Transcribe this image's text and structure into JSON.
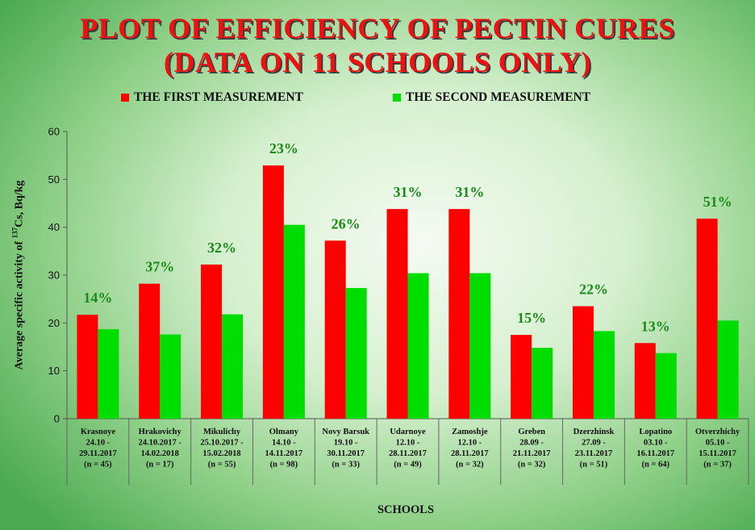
{
  "chart_data": {
    "type": "bar",
    "title_line1": "PLOT OF EFFICIENCY OF PECTIN CURES",
    "title_line2": "(DATA ON 11 SCHOOLS ONLY)",
    "xlabel": "SCHOOLS",
    "ylabel_prefix": "Average specific activity of ",
    "ylabel_sup": "137",
    "ylabel_suffix": "Cs, Bq/kg",
    "ylim": [
      0,
      60
    ],
    "yticks": [
      0,
      10,
      20,
      30,
      40,
      50,
      60
    ],
    "legend_position": "top",
    "colors": {
      "first": "#ff0000",
      "second": "#00dd00",
      "pct": "#1a8a1a"
    },
    "categories": [
      [
        "Krasnoye",
        "24.10 -",
        "29.11.2017",
        "(n = 45)"
      ],
      [
        "Hrakovichy",
        "24.10.2017 -",
        "14.02.2018",
        "(n = 17)"
      ],
      [
        "Mikulichy",
        "25.10.2017 -",
        "15.02.2018",
        "(n = 55)"
      ],
      [
        "Olmany",
        "14.10 -",
        "14.11.2017",
        "(n = 98)"
      ],
      [
        "Novy Barsuk",
        "19.10 -",
        "30.11.2017",
        "(n = 33)"
      ],
      [
        "Udarnoye",
        "12.10 -",
        "28.11.2017",
        "(n = 49)"
      ],
      [
        "Zamoshje",
        "12.10 -",
        "28.11.2017",
        "(n = 32)"
      ],
      [
        "Greben",
        "28.09 -",
        "21.11.2017",
        "(n = 32)"
      ],
      [
        "Dzerzhinsk",
        "27.09 -",
        "23.11.2017",
        "(n = 51)"
      ],
      [
        "Lopatino",
        "03.10 -",
        "16.11.2017",
        "(n = 64)"
      ],
      [
        "Otverzhichy",
        "05.10 -",
        "15.11.2017",
        "(n = 37)"
      ]
    ],
    "series": [
      {
        "name": "THE FIRST MEASUREMENT",
        "values": [
          21.7,
          28.2,
          32.2,
          52.9,
          37.2,
          43.8,
          43.8,
          17.5,
          23.5,
          15.8,
          41.8
        ]
      },
      {
        "name": "THE SECOND MEASUREMENT",
        "values": [
          18.7,
          17.6,
          21.8,
          40.5,
          27.3,
          30.4,
          30.4,
          14.8,
          18.3,
          13.7,
          20.5
        ]
      }
    ],
    "annotations": [
      "14%",
      "37%",
      "32%",
      "23%",
      "26%",
      "31%",
      "31%",
      "15%",
      "22%",
      "13%",
      "51%"
    ]
  }
}
